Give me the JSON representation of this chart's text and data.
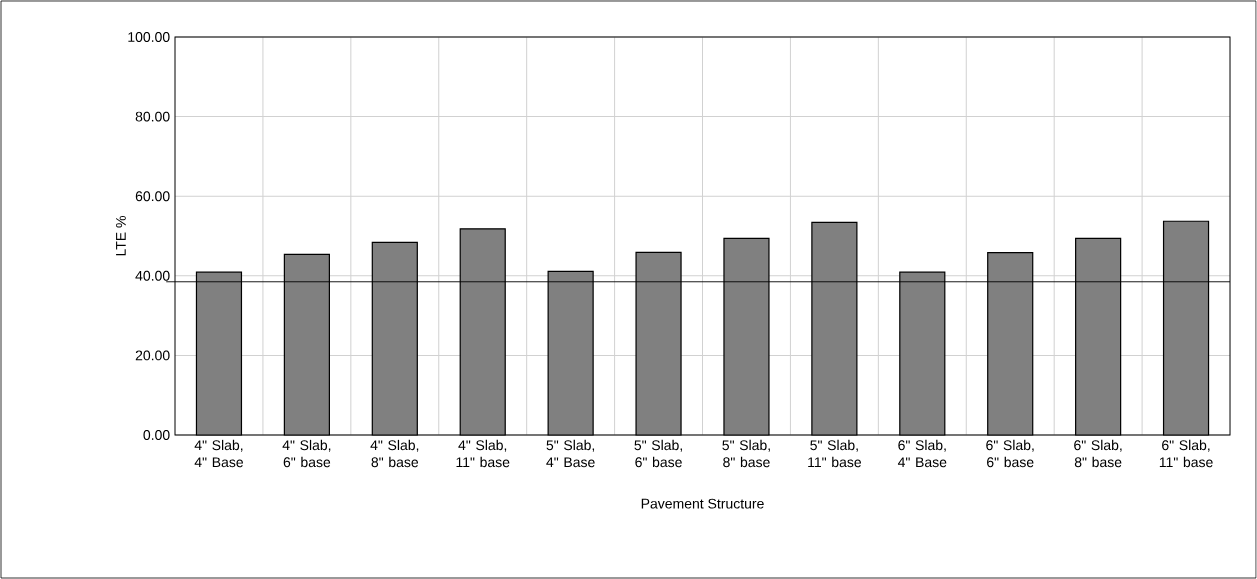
{
  "chart_data": {
    "type": "bar",
    "xlabel": "Pavement Structure",
    "ylabel": "LTE %",
    "categories": [
      "4\" Slab, 4\" Base",
      "4\" Slab, 6\" base",
      "4\" Slab, 8\" base",
      "4\" Slab, 11\" base",
      "5\" Slab, 4\" Base",
      "5\" Slab, 6\" base",
      "5\" Slab, 8\" base",
      "5\" Slab, 11\" base",
      "6\" Slab, 4\" Base",
      "6\" Slab, 6\" base",
      "6\" Slab, 8\" base",
      "6\" Slab, 11\" base"
    ],
    "values": [
      40.9,
      45.4,
      48.4,
      51.8,
      41.1,
      45.9,
      49.4,
      53.4,
      40.9,
      45.8,
      49.4,
      53.7
    ],
    "color": "#808080",
    "ylim": [
      0,
      100
    ],
    "yticks": [
      {
        "value": 0,
        "label": "0.00"
      },
      {
        "value": 20,
        "label": "20.00"
      },
      {
        "value": 40,
        "label": "40.00"
      },
      {
        "value": 60,
        "label": "60.00"
      },
      {
        "value": 80,
        "label": "80.00"
      },
      {
        "value": 100,
        "label": "100.00"
      }
    ],
    "ref_lines": [
      {
        "axis": "y",
        "value": 38.5,
        "color": "#000000"
      }
    ],
    "grid": true
  }
}
